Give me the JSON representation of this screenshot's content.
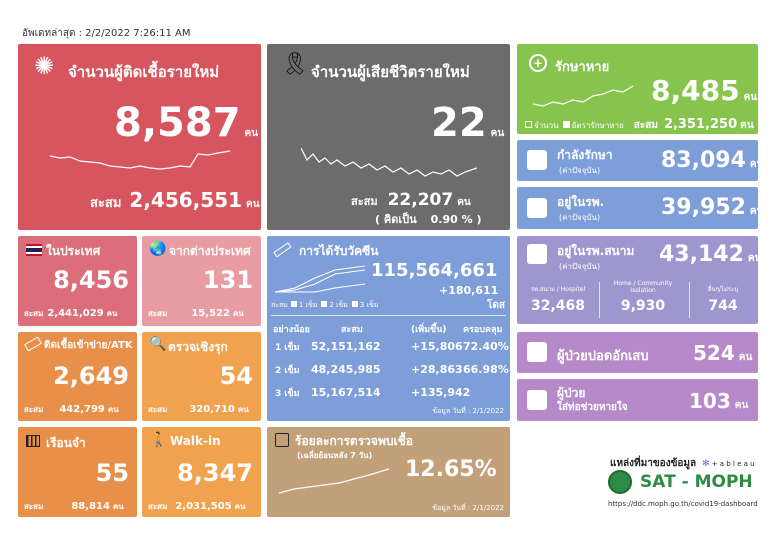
{
  "updated": "อัพเดทล่าสุด : 2/2/2022 7:26:11 AM",
  "new_cases": {
    "title": "จำนวนผู้ติดเชื้อรายใหม่",
    "value": "8,587",
    "unit": "คน",
    "acc_label": "สะสม",
    "acc_value": "2,456,551",
    "acc_unit": "คน"
  },
  "deaths": {
    "title": "จำนวนผู้เสียชีวิตรายใหม่",
    "value": "22",
    "unit": "คน",
    "acc_label": "สะสม",
    "acc_value": "22,207",
    "acc_unit": "คน",
    "pct_label": "( คิดเป็น",
    "pct_value": "0.90 % )"
  },
  "recovered": {
    "title": "รักษาหาย",
    "value": "8,485",
    "unit": "คน",
    "legend1": "จำนวน",
    "legend2": "อัตรารักษาหาย",
    "acc_label": "สะสม",
    "acc_value": "2,351,250",
    "acc_unit": "คน"
  },
  "treating": {
    "title": "กำลังรักษา",
    "sub": "(ค่าปัจจุบัน)",
    "value": "83,094",
    "unit": "คน"
  },
  "hospital": {
    "title": "อยู่ในรพ.",
    "sub": "(ค่าปัจจุบัน)",
    "value": "39,952",
    "unit": "คน"
  },
  "field_hospital": {
    "title": "อยู่ในรพ.สนาม",
    "sub": "(ค่าปัจจุบัน)",
    "value": "43,142",
    "unit": "คน",
    "cols": [
      {
        "label": "รพ.สนาม / Hospitel",
        "value": "32,468"
      },
      {
        "label": "Home / Community Isolation",
        "value": "9,930"
      },
      {
        "label": "อื่นๆ/ไม่ระบุ",
        "value": "744"
      }
    ]
  },
  "pneumonia": {
    "title": "ผู้ป่วยปอดอักเสบ",
    "value": "524",
    "unit": "คน"
  },
  "ventilator": {
    "title1": "ผู้ป่วย",
    "title2": "ใส่ท่อช่วยหายใจ",
    "value": "103",
    "unit": "คน"
  },
  "domestic": {
    "title": "ในประเทศ",
    "value": "8,456",
    "acc_label": "สะสม",
    "acc_value": "2,441,029",
    "acc_unit": "คน"
  },
  "abroad": {
    "title": "จากต่างประเทศ",
    "value": "131",
    "acc_label": "สะสม",
    "acc_value": "15,522",
    "acc_unit": "คน"
  },
  "atk": {
    "title": "ติดเชื้อเข้าข่าย/ATK",
    "value": "2,649",
    "acc_label": "สะสม",
    "acc_value": "442,799",
    "acc_unit": "คน"
  },
  "active_search": {
    "title": "ตรวจเชิงรุก",
    "value": "54",
    "acc_label": "สะสม",
    "acc_value": "320,710",
    "acc_unit": "คน"
  },
  "prison": {
    "title": "เรือนจำ",
    "value": "55",
    "acc_label": "สะสม",
    "acc_value": "88,814",
    "acc_unit": "คน"
  },
  "walkin": {
    "title": "Walk-in",
    "value": "8,347",
    "acc_label": "สะสม",
    "acc_value": "2,031,505",
    "acc_unit": "คน"
  },
  "vaccine": {
    "title": "การได้รับวัคซีน",
    "total": "115,564,661",
    "increase": "+180,611",
    "unit": "โดส",
    "legend_prefix": "สะสม",
    "legend": [
      "1 เข็ม",
      "2 เข็ม",
      "3 เข็ม"
    ],
    "headers": [
      "อย่างน้อย",
      "สะสม",
      "(เพิ่มขึ้น)",
      "ครอบคลุม"
    ],
    "rows": [
      {
        "dose": "1 เข็ม",
        "acc": "52,151,162",
        "inc": "+15,806",
        "cov": "72.40%"
      },
      {
        "dose": "2 เข็ม",
        "acc": "48,245,985",
        "inc": "+28,863",
        "cov": "66.98%"
      },
      {
        "dose": "3 เข็ม",
        "acc": "15,167,514",
        "inc": "+135,942",
        "cov": ""
      }
    ],
    "date": "ข้อมูล วันที่ : 2/1/2022"
  },
  "positivity": {
    "title": "ร้อยละการตรวจพบเชื้อ",
    "sub": "(เฉลี่ยย้อนหลัง 7 วัน)",
    "value": "12.65%",
    "date": "ข้อมูล วันที่ : 2/1/2022"
  },
  "source": {
    "label": "แหล่งที่มาของข้อมูล",
    "tableau": "+ a b l e a u",
    "brand": "SAT - MOPH",
    "url": "https://ddc.moph.go.th/covid19-dashboard"
  },
  "colors": {
    "new": "#d6555f",
    "death": "#6c6c6c",
    "recovered": "#87c44e",
    "blue": "#7d9ed8",
    "green_logo": "#2e8b45"
  }
}
